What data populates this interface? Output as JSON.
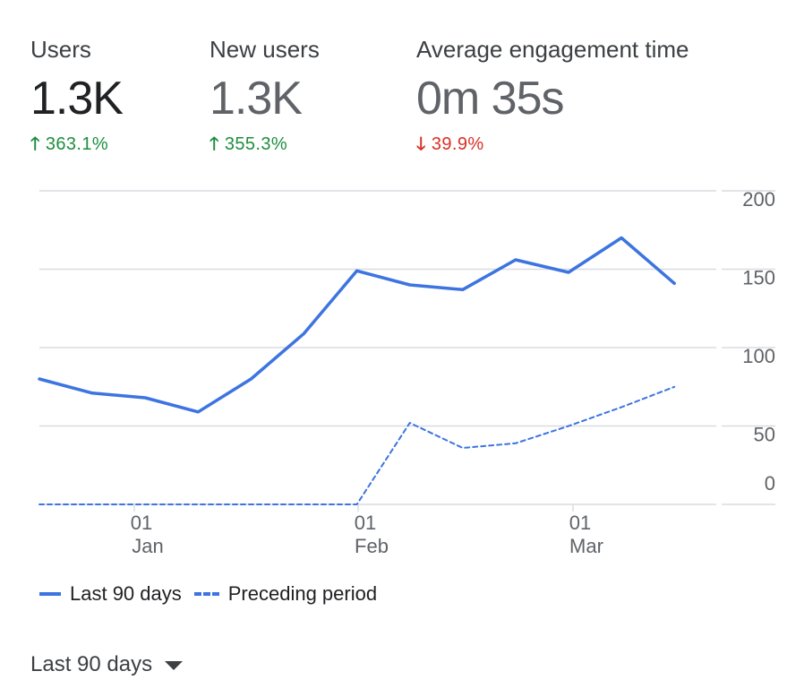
{
  "metrics": [
    {
      "label": "Users",
      "value": "1.3K",
      "change": "363.1%",
      "direction": "up",
      "active": true
    },
    {
      "label": "New users",
      "value": "1.3K",
      "change": "355.3%",
      "direction": "up",
      "active": false
    },
    {
      "label": "Average engagement time",
      "value": "0m 35s",
      "change": "39.9%",
      "direction": "down",
      "active": false
    }
  ],
  "colors": {
    "series": "#3d74e0",
    "up": "#1e8e3e",
    "down": "#d93025",
    "grid": "#dadce0"
  },
  "icons": {
    "up": "arrow-up-icon",
    "down": "arrow-down-icon",
    "dropdown": "caret-down-icon"
  },
  "chart_data": {
    "type": "line",
    "y_ticks": [
      "200",
      "150",
      "100",
      "50",
      "0"
    ],
    "ylim": [
      0,
      200
    ],
    "x_tick_labels": [
      {
        "day": "01",
        "month": "Jan"
      },
      {
        "day": "01",
        "month": "Feb"
      },
      {
        "day": "01",
        "month": "Mar"
      }
    ],
    "series": [
      {
        "name": "Last 90 days",
        "style": "solid",
        "x": [
          "Dec 17",
          "Dec 24",
          "Dec 31",
          "Jan 07",
          "Jan 14",
          "Jan 21",
          "Jan 28",
          "Feb 04",
          "Feb 11",
          "Feb 18",
          "Feb 25",
          "Mar 03",
          "Mar 10"
        ],
        "values": [
          80,
          71,
          68,
          59,
          80,
          109,
          149,
          140,
          137,
          156,
          148,
          170,
          141
        ]
      },
      {
        "name": "Preceding period",
        "style": "dashed",
        "x": [
          "Dec 17",
          "Jan 28",
          "Feb 04",
          "Feb 11",
          "Feb 18",
          "Feb 25",
          "Mar 03",
          "Mar 10"
        ],
        "values": [
          0,
          0,
          52,
          36,
          39,
          50,
          62,
          75
        ]
      }
    ],
    "grid": true,
    "legend_position": "bottom"
  },
  "legend": [
    {
      "label": "Last 90 days"
    },
    {
      "label": "Preceding period"
    }
  ],
  "range_selector": {
    "label": "Last 90 days"
  }
}
